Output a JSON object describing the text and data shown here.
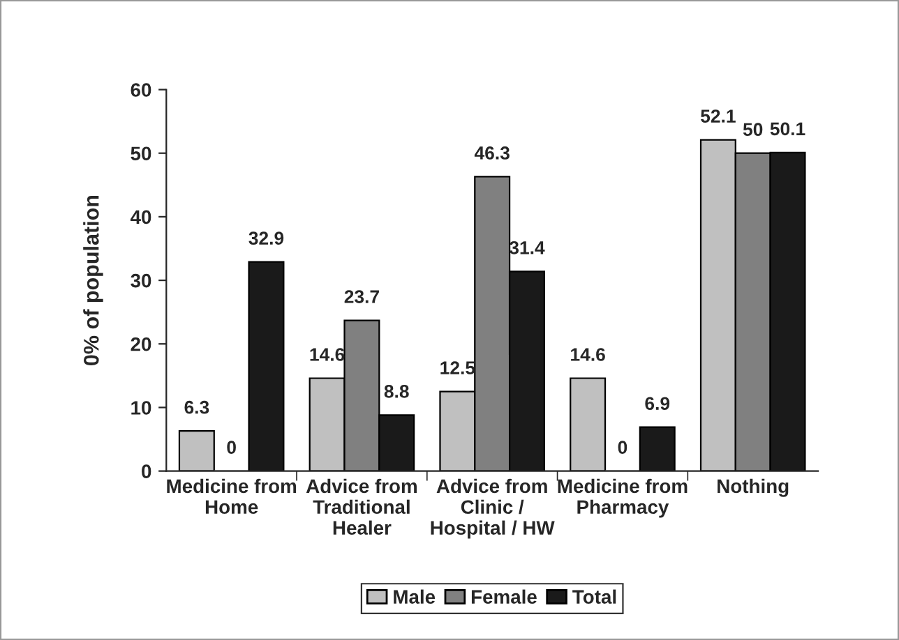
{
  "chart_data": {
    "type": "bar",
    "categories": [
      "Medicine from\nHome",
      "Advice from\nTraditional\nHealer",
      "Advice from\nClinic /\nHospital / HW",
      "Medicine from\nPharmacy",
      "Nothing"
    ],
    "series": [
      {
        "name": "Male",
        "color": "#c0c0c0",
        "values": [
          6.3,
          14.6,
          12.5,
          14.6,
          52.1
        ]
      },
      {
        "name": "Female",
        "color": "#808080",
        "values": [
          0,
          23.7,
          46.3,
          0,
          50
        ]
      },
      {
        "name": "Total",
        "color": "#1a1a1a",
        "values": [
          32.9,
          8.8,
          31.4,
          6.9,
          50.1
        ]
      }
    ],
    "ylabel": "0% of population",
    "ylim": [
      0,
      60
    ],
    "yticks": [
      0,
      10,
      20,
      30,
      40,
      50,
      60
    ],
    "data_labels": true,
    "grid": false,
    "legend": "bottom"
  }
}
